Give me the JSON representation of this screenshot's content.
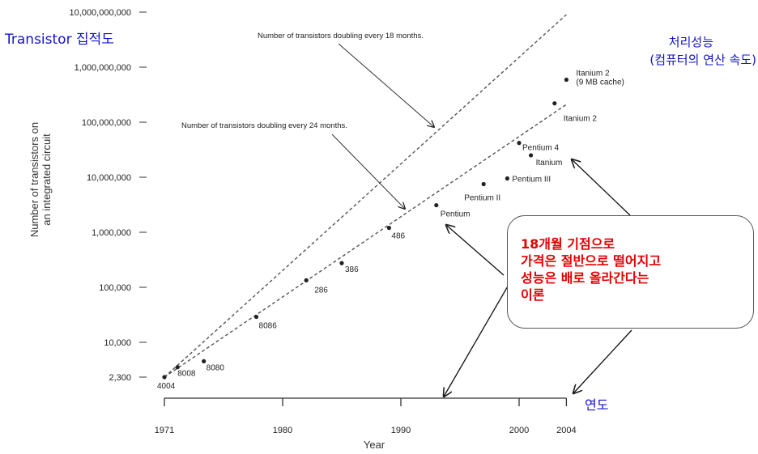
{
  "colors": {
    "annotation_blue": "#1414c8",
    "callout_red": "#e60000",
    "ink": "#222222"
  },
  "annotations": {
    "transistor_title": "Transistor 집적도",
    "performance_title_line1": "처리성능",
    "performance_title_line2": "(컴퓨터의 연산 속도)",
    "year_label_kr": "연도",
    "callout_lines": [
      "18개월 기점으로",
      "가격은 절반으로 떨어지고",
      "성능은 배로 올라간다는",
      "이론"
    ]
  },
  "chart_data": {
    "type": "scatter",
    "scale_y": "log",
    "grid": false,
    "xlabel": "Year",
    "ylabel_lines": [
      "Number of transistors on",
      "an integrated circuit"
    ],
    "xlim": [
      1971,
      2004
    ],
    "x_ticks": [
      1971,
      1980,
      1990,
      2000,
      2004
    ],
    "y_ticks": [
      {
        "value": 2300,
        "label": "2,300"
      },
      {
        "value": 10000,
        "label": "10,000"
      },
      {
        "value": 100000,
        "label": "100,000"
      },
      {
        "value": 1000000,
        "label": "1,000,000"
      },
      {
        "value": 10000000,
        "label": "10,000,000"
      },
      {
        "value": 100000000,
        "label": "100,000,000"
      },
      {
        "value": 1000000000,
        "label": "1,000,000,000"
      },
      {
        "value": 10000000000,
        "label": "10,000,000,000"
      }
    ],
    "points": [
      {
        "label": "4004",
        "x": 1971,
        "y": 2300
      },
      {
        "label": "8008",
        "x": 1972,
        "y": 3500
      },
      {
        "label": "8080",
        "x": 1974,
        "y": 4500
      },
      {
        "label": "8086",
        "x": 1978,
        "y": 29000
      },
      {
        "label": "286",
        "x": 1982,
        "y": 134000
      },
      {
        "label": "386",
        "x": 1985,
        "y": 275000
      },
      {
        "label": "486",
        "x": 1989,
        "y": 1200000
      },
      {
        "label": "Pentium",
        "x": 1993,
        "y": 3100000
      },
      {
        "label": "Pentium II",
        "x": 1997,
        "y": 7500000
      },
      {
        "label": "Pentium III",
        "x": 1999,
        "y": 9500000
      },
      {
        "label": "Pentium 4",
        "x": 2000,
        "y": 42000000
      },
      {
        "label": "Itanium",
        "x": 2001,
        "y": 25000000
      },
      {
        "label": "Itanium 2",
        "x": 2003,
        "y": 220000000
      },
      {
        "label": "Itanium 2 (9 MB cache)",
        "label_lines": [
          "Itanium 2",
          "(9 MB cache)"
        ],
        "x": 2004,
        "y": 592000000
      }
    ],
    "trend_lines": [
      {
        "label": "Number of transistors doubling every 18 months.",
        "doubling_months": 18,
        "from": {
          "x": 1971,
          "y": 2300
        },
        "to": {
          "x": 2004,
          "y": 9000000000
        }
      },
      {
        "label": "Number of transistors doubling every 24 months.",
        "doubling_months": 24,
        "from": {
          "x": 1971,
          "y": 2300
        },
        "to": {
          "x": 2004,
          "y": 210000000
        }
      }
    ]
  }
}
